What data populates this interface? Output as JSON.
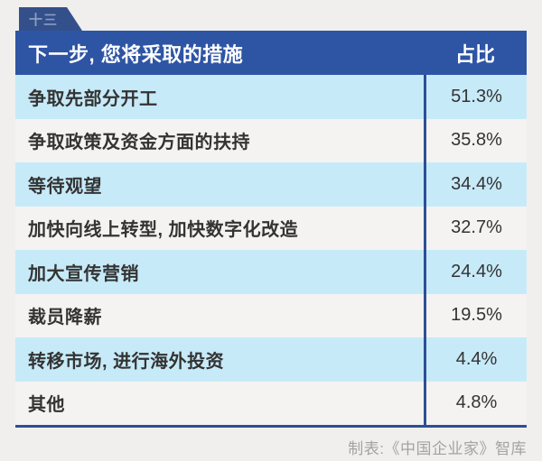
{
  "tab": {
    "label": "十三"
  },
  "header": {
    "title": "下一步, 您将采取的措施",
    "value_col": "占比"
  },
  "table": {
    "rows": [
      {
        "label": "争取先部分开工",
        "value": "51.3%"
      },
      {
        "label": "争取政策及资金方面的扶持",
        "value": "35.8%"
      },
      {
        "label": "等待观望",
        "value": "34.4%"
      },
      {
        "label": "加快向线上转型, 加快数字化改造",
        "value": "32.7%"
      },
      {
        "label": "加大宣传营销",
        "value": "24.4%"
      },
      {
        "label": "裁员降薪",
        "value": "19.5%"
      },
      {
        "label": "转移市场, 进行海外投资",
        "value": "4.4%"
      },
      {
        "label": "其他",
        "value": "4.8%"
      }
    ]
  },
  "footer": {
    "credit": "制表:《中国企业家》智库"
  },
  "colors": {
    "header_blue": "#2e55a4",
    "tab_navy": "#33508a",
    "row_light_blue": "#c7eaf8",
    "row_off_white": "#f4f3f2",
    "divider_navy": "#2d4f96",
    "text_dark": "#333333",
    "footer_gray": "#a3a3a3"
  },
  "chart_data": {
    "type": "table",
    "title": "下一步, 您将采取的措施",
    "columns": [
      "下一步, 您将采取的措施",
      "占比"
    ],
    "categories": [
      "争取先部分开工",
      "争取政策及资金方面的扶持",
      "等待观望",
      "加快向线上转型, 加快数字化改造",
      "加大宣传营销",
      "裁员降薪",
      "转移市场, 进行海外投资",
      "其他"
    ],
    "values": [
      51.3,
      35.8,
      34.4,
      32.7,
      24.4,
      19.5,
      4.4,
      4.8
    ],
    "value_unit": "%",
    "source": "制表:《中国企业家》智库"
  }
}
